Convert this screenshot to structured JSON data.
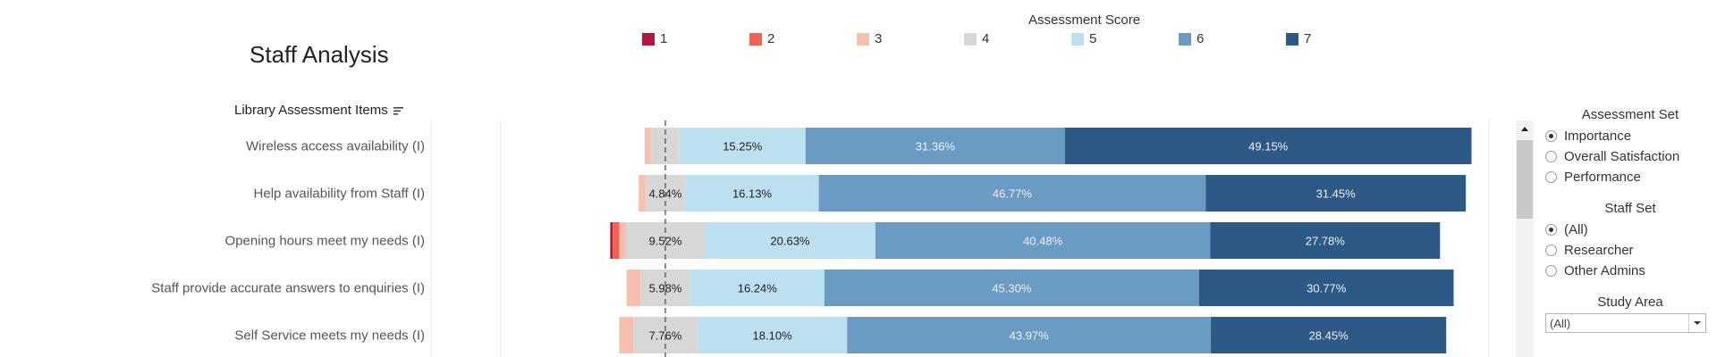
{
  "page": {
    "title": "Staff Analysis"
  },
  "legend": {
    "title": "Assessment Score",
    "items": [
      {
        "label": "1",
        "color": "#b5163c"
      },
      {
        "label": "2",
        "color": "#f0634f"
      },
      {
        "label": "3",
        "color": "#f7bfae"
      },
      {
        "label": "4",
        "color": "#d7d7d7"
      },
      {
        "label": "5",
        "color": "#bde0f1"
      },
      {
        "label": "6",
        "color": "#6a9bc3"
      },
      {
        "label": "7",
        "color": "#2c5986"
      }
    ]
  },
  "items_header": "Library Assessment Items",
  "chart_data": {
    "type": "bar",
    "orientation": "horizontal",
    "stacked": "diverging",
    "categories": [
      "Wireless access availability (I)",
      "Help availability from Staff (I)",
      "Opening hours meet my needs (I)",
      "Staff provide accurate answers to enquiries (I)",
      "Self Service meets my needs (I)"
    ],
    "series": [
      {
        "name": "1",
        "values": [
          0,
          0,
          0.3,
          0,
          0
        ]
      },
      {
        "name": "2",
        "values": [
          0,
          0,
          0.8,
          0,
          0
        ]
      },
      {
        "name": "3",
        "values": [
          0.8,
          0.8,
          0.8,
          1.7,
          1.7
        ]
      },
      {
        "name": "4",
        "values": [
          3.4,
          4.84,
          9.52,
          5.98,
          7.76
        ]
      },
      {
        "name": "5",
        "values": [
          15.25,
          16.13,
          20.63,
          16.24,
          18.1
        ]
      },
      {
        "name": "6",
        "values": [
          31.36,
          46.77,
          40.48,
          45.3,
          43.97
        ]
      },
      {
        "name": "7",
        "values": [
          49.15,
          31.45,
          27.78,
          30.77,
          28.45
        ]
      }
    ],
    "labels": [
      [
        "",
        "",
        "",
        "",
        "15.25%",
        "31.36%",
        "49.15%"
      ],
      [
        "",
        "",
        "",
        "4.84%",
        "16.13%",
        "46.77%",
        "31.45%"
      ],
      [
        "",
        "",
        "",
        "9.52%",
        "20.63%",
        "40.48%",
        "27.78%"
      ],
      [
        "",
        "",
        "",
        "5.98%",
        "16.24%",
        "45.30%",
        "30.77%"
      ],
      [
        "",
        "",
        "",
        "7.76%",
        "18.10%",
        "43.97%",
        "28.45%"
      ]
    ],
    "xlabel": "",
    "ylabel": "Library Assessment Items",
    "reference_line": "dashed vertical line at the midpoint of score 4",
    "grid": false
  },
  "controls": {
    "assessment_set": {
      "title": "Assessment Set",
      "options": [
        "Importance",
        "Overall Satisfaction",
        "Performance"
      ],
      "selected": "Importance"
    },
    "staff_set": {
      "title": "Staff Set",
      "options": [
        "(All)",
        "Researcher",
        "Other Admins"
      ],
      "selected": "(All)"
    },
    "study_area": {
      "title": "Study Area",
      "value": "(All)"
    }
  }
}
